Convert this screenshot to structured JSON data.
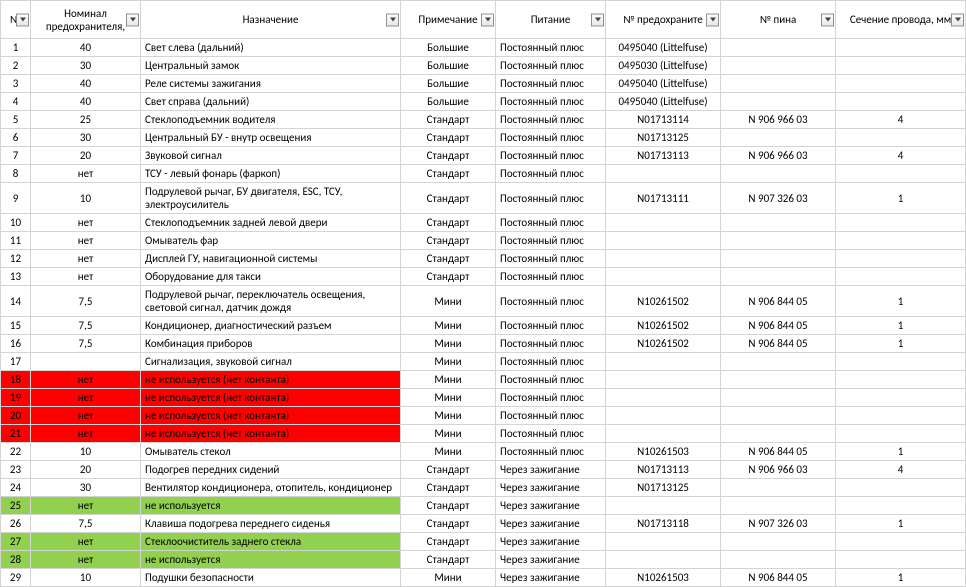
{
  "headers": {
    "n": "№",
    "rating": "Номинал предохранителя,",
    "name": "Назначение",
    "note": "Примечание",
    "power": "Питание",
    "fuse": "№ предохраните",
    "pin": "№ пина",
    "wire": "Сечение провода, мм"
  },
  "colors": {
    "red": "#ff0000",
    "green": "#92d050",
    "border": "#d4d4d4"
  },
  "rows": [
    {
      "n": "1",
      "rating": "40",
      "name": "Свет слева (дальний)",
      "note": "Большие",
      "power": "Постоянный плюс",
      "fuse": "0495040 (Littelfuse)",
      "pin": "",
      "wire": "",
      "hl": ""
    },
    {
      "n": "2",
      "rating": "30",
      "name": "Центральный замок",
      "note": "Большие",
      "power": "Постоянный плюс",
      "fuse": "0495030 (Littelfuse)",
      "pin": "",
      "wire": "",
      "hl": ""
    },
    {
      "n": "3",
      "rating": "40",
      "name": "Реле системы зажигания",
      "note": "Большие",
      "power": "Постоянный плюс",
      "fuse": "0495040 (Littelfuse)",
      "pin": "",
      "wire": "",
      "hl": ""
    },
    {
      "n": "4",
      "rating": "40",
      "name": "Свет справа (дальний)",
      "note": "Большие",
      "power": "Постоянный плюс",
      "fuse": "0495040 (Littelfuse)",
      "pin": "",
      "wire": "",
      "hl": ""
    },
    {
      "n": "5",
      "rating": "25",
      "name": "Стеклоподъемник водителя",
      "note": "Стандарт",
      "power": "Постоянный плюс",
      "fuse": "N01713114",
      "pin": "N 906 966 03",
      "wire": "4",
      "hl": ""
    },
    {
      "n": "6",
      "rating": "30",
      "name": "Центральный БУ - внутр освещения",
      "note": "Стандарт",
      "power": "Постоянный плюс",
      "fuse": "N01713125",
      "pin": "",
      "wire": "",
      "hl": ""
    },
    {
      "n": "7",
      "rating": "20",
      "name": "Звуковой сигнал",
      "note": "Стандарт",
      "power": "Постоянный плюс",
      "fuse": "N01713113",
      "pin": "N 906 966 03",
      "wire": "4",
      "hl": ""
    },
    {
      "n": "8",
      "rating": "нет",
      "name": "ТСУ - левый фонарь (фаркоп)",
      "note": "Стандарт",
      "power": "Постоянный плюс",
      "fuse": "",
      "pin": "",
      "wire": "",
      "hl": ""
    },
    {
      "n": "9",
      "rating": "10",
      "name": "Подрулевой рычаг, БУ двигателя, ESC, ТСУ, электроусилитель",
      "note": "Стандарт",
      "power": "Постоянный плюс",
      "fuse": "N01713111",
      "pin": "N 907 326 03",
      "wire": "1",
      "hl": ""
    },
    {
      "n": "10",
      "rating": "нет",
      "name": "Стеклоподъемник задней левой двери",
      "note": "Стандарт",
      "power": "Постоянный плюс",
      "fuse": "",
      "pin": "",
      "wire": "",
      "hl": ""
    },
    {
      "n": "11",
      "rating": "нет",
      "name": "Омыватель фар",
      "note": "Стандарт",
      "power": "Постоянный плюс",
      "fuse": "",
      "pin": "",
      "wire": "",
      "hl": ""
    },
    {
      "n": "12",
      "rating": "нет",
      "name": "Дисплей ГУ, навигационной системы",
      "note": "Стандарт",
      "power": "Постоянный плюс",
      "fuse": "",
      "pin": "",
      "wire": "",
      "hl": ""
    },
    {
      "n": "13",
      "rating": "нет",
      "name": "Оборудование для такси",
      "note": "Стандарт",
      "power": "Постоянный плюс",
      "fuse": "",
      "pin": "",
      "wire": "",
      "hl": ""
    },
    {
      "n": "14",
      "rating": "7,5",
      "name": "Подрулевой рычаг, переключатель освещения, световой сигнал, датчик дождя",
      "note": "Мини",
      "power": "Постоянный плюс",
      "fuse": "N10261502",
      "pin": "N 906 844 05",
      "wire": "1",
      "hl": ""
    },
    {
      "n": "15",
      "rating": "7,5",
      "name": "Кондиционер, диагностический разъем",
      "note": "Мини",
      "power": "Постоянный плюс",
      "fuse": "N10261502",
      "pin": "N 906 844 05",
      "wire": "1",
      "hl": ""
    },
    {
      "n": "16",
      "rating": "7,5",
      "name": "Комбинация приборов",
      "note": "Мини",
      "power": "Постоянный плюс",
      "fuse": "N10261502",
      "pin": "N 906 844 05",
      "wire": "1",
      "hl": ""
    },
    {
      "n": "17",
      "rating": "",
      "name": "Сигнализация, звуковой сигнал",
      "note": "Мини",
      "power": "Постоянный плюс",
      "fuse": "",
      "pin": "",
      "wire": "",
      "hl": ""
    },
    {
      "n": "18",
      "rating": "нет",
      "name": "не используется (нет контанта)",
      "note": "Мини",
      "power": "Постоянный плюс",
      "fuse": "",
      "pin": "",
      "wire": "",
      "hl": "red"
    },
    {
      "n": "19",
      "rating": "нет",
      "name": "не используется (нет контанта)",
      "note": "Мини",
      "power": "Постоянный плюс",
      "fuse": "",
      "pin": "",
      "wire": "",
      "hl": "red"
    },
    {
      "n": "20",
      "rating": "нет",
      "name": "не используется (нет контанта)",
      "note": "Мини",
      "power": "Постоянный плюс",
      "fuse": "",
      "pin": "",
      "wire": "",
      "hl": "red"
    },
    {
      "n": "21",
      "rating": "нет",
      "name": "не используется (нет контанта)",
      "note": "Мини",
      "power": "Постоянный плюс",
      "fuse": "",
      "pin": "",
      "wire": "",
      "hl": "red"
    },
    {
      "n": "22",
      "rating": "10",
      "name": "Омыватель стекол",
      "note": "Мини",
      "power": "Постоянный плюс",
      "fuse": "N10261503",
      "pin": "N 906 844 05",
      "wire": "1",
      "hl": ""
    },
    {
      "n": "23",
      "rating": "20",
      "name": "Подогрев передних сидений",
      "note": "Стандарт",
      "power": "Через зажигание",
      "fuse": "N01713113",
      "pin": "N 906 966 03",
      "wire": "4",
      "hl": ""
    },
    {
      "n": "24",
      "rating": "30",
      "name": "Вентилятор кондиционера, отопитель, кондиционер",
      "note": "Стандарт",
      "power": "Через зажигание",
      "fuse": "N01713125",
      "pin": "",
      "wire": "",
      "hl": ""
    },
    {
      "n": "25",
      "rating": "нет",
      "name": "не используется",
      "note": "Стандарт",
      "power": "Через зажигание",
      "fuse": "",
      "pin": "",
      "wire": "",
      "hl": "green"
    },
    {
      "n": "26",
      "rating": "7,5",
      "name": "Клавиша подогрева переднего сиденья",
      "note": "Стандарт",
      "power": "Через зажигание",
      "fuse": "N01713118",
      "pin": "N 907 326 03",
      "wire": "1",
      "hl": ""
    },
    {
      "n": "27",
      "rating": "нет",
      "name": "Стеклоочиститель заднего стекла",
      "note": "Стандарт",
      "power": "Через зажигание",
      "fuse": "",
      "pin": "",
      "wire": "",
      "hl": "green"
    },
    {
      "n": "28",
      "rating": "нет",
      "name": "не используется",
      "note": "Стандарт",
      "power": "Через зажигание",
      "fuse": "",
      "pin": "",
      "wire": "",
      "hl": "green"
    },
    {
      "n": "29",
      "rating": "10",
      "name": "Подушки безопасности",
      "note": "Мини",
      "power": "Через зажигание",
      "fuse": "N10261503",
      "pin": "N 906 844 05",
      "wire": "1",
      "hl": ""
    }
  ]
}
